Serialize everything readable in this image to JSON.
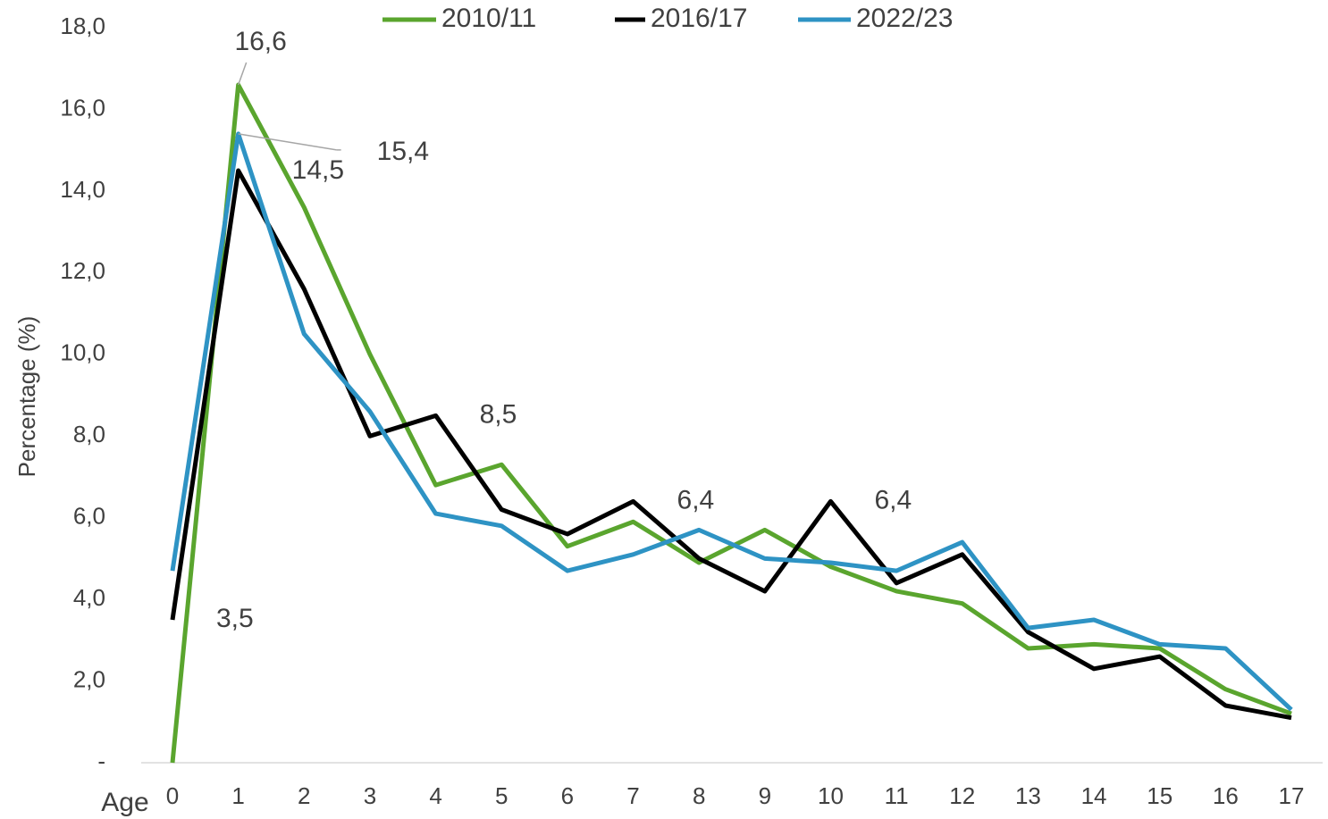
{
  "chart_data": {
    "type": "line",
    "y_label": "Percentage (%)",
    "x_label": "Age",
    "categories": [
      "0",
      "1",
      "2",
      "3",
      "4",
      "5",
      "6",
      "7",
      "8",
      "9",
      "10",
      "11",
      "12",
      "13",
      "14",
      "15",
      "16",
      "17"
    ],
    "ylim": [
      0,
      18
    ],
    "yticks": [
      {
        "value": 0,
        "label": "-"
      },
      {
        "value": 2,
        "label": "2,0"
      },
      {
        "value": 4,
        "label": "4,0"
      },
      {
        "value": 6,
        "label": "6,0"
      },
      {
        "value": 8,
        "label": "8,0"
      },
      {
        "value": 10,
        "label": "10,0"
      },
      {
        "value": 12,
        "label": "12,0"
      },
      {
        "value": 14,
        "label": "14,0"
      },
      {
        "value": 16,
        "label": "16,0"
      },
      {
        "value": 18,
        "label": "18,0"
      }
    ],
    "legend": "top",
    "series": [
      {
        "name": "2010/11",
        "color": "#5aa52e",
        "values": [
          0,
          16.6,
          13.6,
          10.0,
          6.8,
          7.3,
          5.3,
          5.9,
          4.9,
          5.7,
          4.8,
          4.2,
          3.9,
          2.8,
          2.9,
          2.8,
          1.8,
          1.2
        ],
        "value_labels": [
          null,
          "16,6",
          null,
          null,
          null,
          null,
          null,
          null,
          null,
          null,
          null,
          null,
          null,
          null,
          null,
          null,
          null,
          null
        ]
      },
      {
        "name": "2016/17",
        "color": "#000000",
        "values": [
          3.5,
          14.5,
          11.6,
          8.0,
          8.5,
          6.2,
          5.6,
          6.4,
          5.0,
          4.2,
          6.4,
          4.4,
          5.1,
          3.2,
          2.3,
          2.6,
          1.4,
          1.1
        ],
        "value_labels": [
          "3,5",
          "14,5",
          null,
          null,
          "8,5",
          null,
          null,
          "6,4",
          null,
          null,
          "6,4",
          null,
          null,
          null,
          null,
          null,
          null,
          null
        ]
      },
      {
        "name": "2022/23",
        "color": "#2e93c4",
        "values": [
          4.7,
          15.4,
          10.5,
          8.6,
          6.1,
          5.8,
          4.7,
          5.1,
          5.7,
          5.0,
          4.9,
          4.7,
          5.4,
          3.3,
          3.5,
          2.9,
          2.8,
          1.3
        ],
        "value_labels": [
          null,
          "15,4",
          null,
          null,
          null,
          null,
          null,
          null,
          null,
          null,
          null,
          null,
          null,
          null,
          null,
          null,
          null,
          null
        ]
      }
    ]
  }
}
